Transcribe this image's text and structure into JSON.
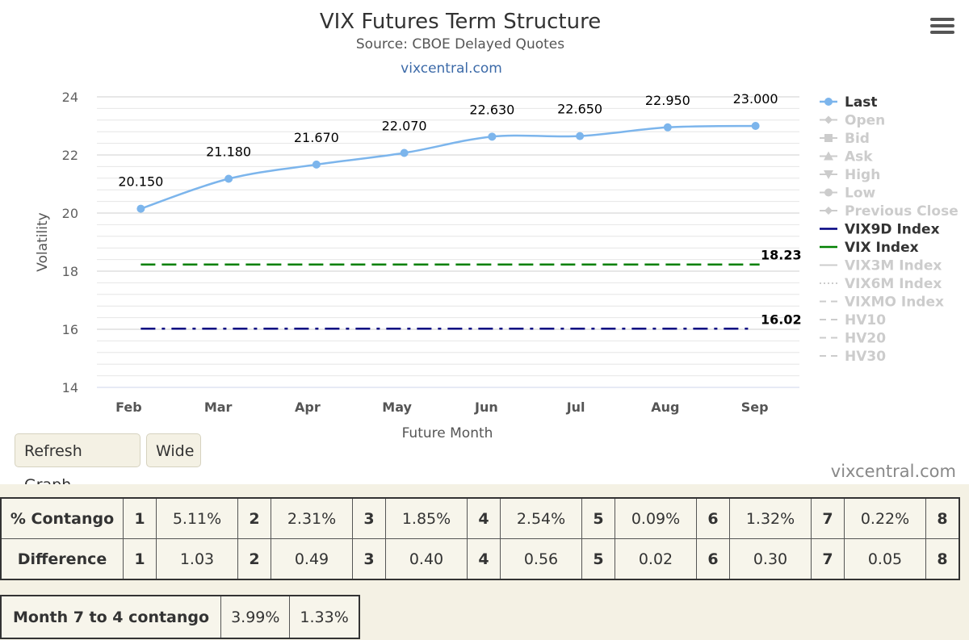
{
  "chart_data": {
    "type": "line",
    "title": "VIX Futures Term Structure",
    "subtitle": "Source: CBOE Delayed Quotes",
    "link_text": "vixcentral.com",
    "xlabel": "Future Month",
    "ylabel": "Volatility",
    "categories": [
      "Feb",
      "Mar",
      "Apr",
      "May",
      "Jun",
      "Jul",
      "Aug",
      "Sep"
    ],
    "ylim": [
      14,
      24
    ],
    "yticks": [
      "14",
      "16",
      "18",
      "20",
      "22",
      "24"
    ],
    "grid": true,
    "legend_position": "right",
    "series": [
      {
        "name": "Last",
        "values": [
          20.15,
          21.18,
          21.67,
          22.07,
          22.63,
          22.65,
          22.95,
          23.0
        ],
        "labels": [
          "20.150",
          "21.180",
          "21.670",
          "22.070",
          "22.630",
          "22.650",
          "22.950",
          "23.000"
        ],
        "color": "#7cb5ec"
      },
      {
        "name": "VIX Index",
        "value": 18.23,
        "label": "18.23",
        "color": "#008000"
      },
      {
        "name": "VIX9D Index",
        "value": 16.02,
        "label": "16.02",
        "color": "#000080"
      }
    ],
    "legend": [
      {
        "name": "Last",
        "active": true,
        "color": "#7cb5ec",
        "marker": "circle"
      },
      {
        "name": "Open",
        "active": false,
        "marker": "diamond"
      },
      {
        "name": "Bid",
        "active": false,
        "marker": "square"
      },
      {
        "name": "Ask",
        "active": false,
        "marker": "triangle"
      },
      {
        "name": "High",
        "active": false,
        "marker": "triangle-down"
      },
      {
        "name": "Low",
        "active": false,
        "marker": "circle"
      },
      {
        "name": "Previous Close",
        "active": false,
        "marker": "diamond"
      },
      {
        "name": "VIX9D Index",
        "active": true,
        "color": "#000080",
        "marker": "line"
      },
      {
        "name": "VIX Index",
        "active": true,
        "color": "#008000",
        "marker": "line"
      },
      {
        "name": "VIX3M Index",
        "active": false,
        "marker": "line"
      },
      {
        "name": "VIX6M Index",
        "active": false,
        "marker": "dotted"
      },
      {
        "name": "VIXMO Index",
        "active": false,
        "marker": "dashed"
      },
      {
        "name": "HV10",
        "active": false,
        "marker": "dashed"
      },
      {
        "name": "HV20",
        "active": false,
        "marker": "dashed"
      },
      {
        "name": "HV30",
        "active": false,
        "marker": "dashed"
      }
    ]
  },
  "buttons": {
    "refresh": "Refresh Graph",
    "wide": "Wide"
  },
  "credit": "vixcentral.com",
  "contango_table": {
    "rows": [
      {
        "label": "% Contango",
        "cells": [
          [
            "1",
            "5.11%"
          ],
          [
            "2",
            "2.31%"
          ],
          [
            "3",
            "1.85%"
          ],
          [
            "4",
            "2.54%"
          ],
          [
            "5",
            "0.09%"
          ],
          [
            "6",
            "1.32%"
          ],
          [
            "7",
            "0.22%"
          ],
          [
            "8",
            ""
          ]
        ]
      },
      {
        "label": "Difference",
        "cells": [
          [
            "1",
            "1.03"
          ],
          [
            "2",
            "0.49"
          ],
          [
            "3",
            "0.40"
          ],
          [
            "4",
            "0.56"
          ],
          [
            "5",
            "0.02"
          ],
          [
            "6",
            "0.30"
          ],
          [
            "7",
            "0.05"
          ],
          [
            "8",
            ""
          ]
        ]
      }
    ]
  },
  "month_table": {
    "label": "Month 7 to 4 contango",
    "values": [
      "3.99%",
      "1.33%"
    ]
  }
}
